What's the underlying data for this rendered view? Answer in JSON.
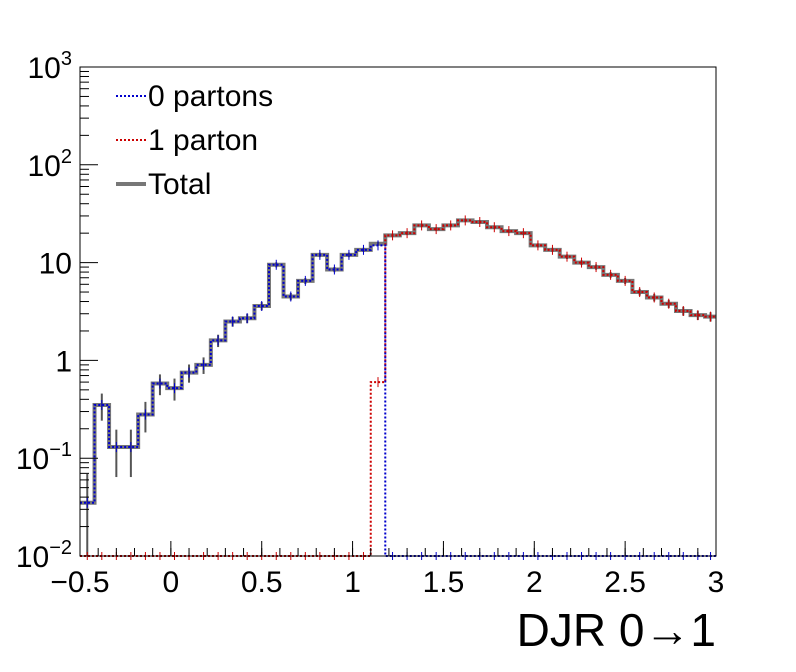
{
  "chart_data": {
    "type": "line",
    "title": "",
    "xlabel": "DJR 0→1",
    "ylabel": "",
    "xlim": [
      -0.5,
      3
    ],
    "ylim": [
      0.01,
      1000
    ],
    "yscale": "log",
    "grid": false,
    "legend_position": "top-left",
    "x_ticks": [
      -0.5,
      0,
      0.5,
      1,
      1.5,
      2,
      2.5,
      3
    ],
    "x_tick_labels": [
      "−0.5",
      "0",
      "0.5",
      "1",
      "1.5",
      "2",
      "2.5",
      "3"
    ],
    "y_ticks": [
      {
        "value": 0.01,
        "base": "10",
        "exp": "−2"
      },
      {
        "value": 0.1,
        "base": "10",
        "exp": "−1"
      },
      {
        "value": 1,
        "base": "1",
        "exp": ""
      },
      {
        "value": 10,
        "base": "10",
        "exp": ""
      },
      {
        "value": 100,
        "base": "10",
        "exp": "2"
      },
      {
        "value": 1000,
        "base": "10",
        "exp": "3"
      }
    ],
    "bin_edges": [
      -0.5,
      -0.42,
      -0.34,
      -0.26,
      -0.18,
      -0.1,
      -0.02,
      0.06,
      0.14,
      0.22,
      0.3,
      0.38,
      0.46,
      0.54,
      0.62,
      0.7,
      0.78,
      0.86,
      0.94,
      1.02,
      1.1,
      1.18,
      1.26,
      1.34,
      1.42,
      1.5,
      1.58,
      1.66,
      1.74,
      1.82,
      1.9,
      1.98,
      2.06,
      2.14,
      2.22,
      2.3,
      2.38,
      2.46,
      2.54,
      2.62,
      2.7,
      2.78,
      2.86,
      2.94,
      3.0
    ],
    "series": [
      {
        "name": "0 partons",
        "color": "#0000cc",
        "style": "dotted",
        "values": [
          0.035,
          0.35,
          0.13,
          0.13,
          0.28,
          0.58,
          0.52,
          0.75,
          0.9,
          1.6,
          2.5,
          2.7,
          3.6,
          9.5,
          4.5,
          6.5,
          12,
          8.5,
          12,
          13.5,
          15,
          0.01,
          0.01,
          0.01,
          0.01,
          0.01,
          0.01,
          0.01,
          0.01,
          0.01,
          0.01,
          0.01,
          0.01,
          0.01,
          0.01,
          0.01,
          0.01,
          0.01,
          0.01,
          0.01,
          0.01,
          0.01,
          0.01,
          0.01
        ]
      },
      {
        "name": "1 parton",
        "color": "#cc0000",
        "style": "dotted",
        "values": [
          0.01,
          0.01,
          0.01,
          0.01,
          0.01,
          0.01,
          0.01,
          0.01,
          0.01,
          0.01,
          0.01,
          0.01,
          0.01,
          0.01,
          0.01,
          0.01,
          0.01,
          0.01,
          0.01,
          0.01,
          0.6,
          19,
          20,
          24,
          22,
          24,
          27,
          26,
          23,
          21,
          20,
          15,
          13.5,
          11.5,
          10,
          9.0,
          7.5,
          6.5,
          5.0,
          4.4,
          3.8,
          3.2,
          2.9,
          2.8
        ]
      },
      {
        "name": "Total",
        "color": "#777777",
        "style": "solid",
        "values": [
          0.035,
          0.35,
          0.13,
          0.13,
          0.28,
          0.58,
          0.52,
          0.75,
          0.9,
          1.6,
          2.5,
          2.7,
          3.6,
          9.5,
          4.5,
          6.5,
          12,
          8.5,
          12,
          13.5,
          15.6,
          19,
          20,
          24,
          22,
          24,
          27,
          26,
          23,
          21,
          20,
          15,
          13.5,
          11.5,
          10,
          9.0,
          7.5,
          6.5,
          5.0,
          4.4,
          3.8,
          3.2,
          2.9,
          2.8
        ]
      }
    ]
  }
}
